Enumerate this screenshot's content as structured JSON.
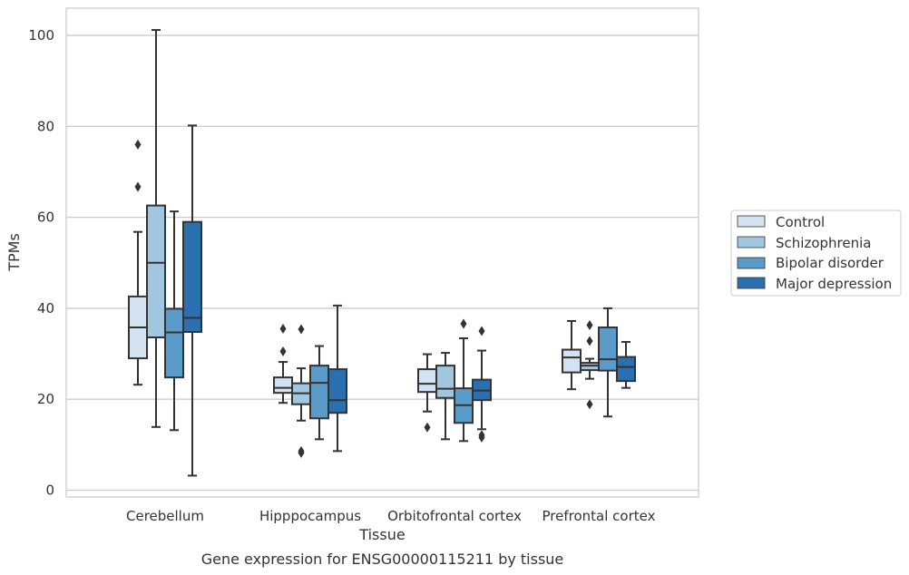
{
  "chart_data": {
    "type": "box",
    "title": "",
    "caption": "Gene expression for ENSG00000115211 by tissue",
    "xlabel": "Tissue",
    "ylabel": "TPMs",
    "ylim": [
      -1.5,
      106
    ],
    "yticks": [
      0,
      20,
      40,
      60,
      80,
      100
    ],
    "grid": "horizontal",
    "legend_position": "right",
    "categories": [
      "Cerebellum",
      "Hipppocampus",
      "Orbitofrontal cortex",
      "Prefrontal cortex"
    ],
    "series": [
      {
        "name": "Control",
        "color": "#d3e3f2",
        "boxes": [
          {
            "whisker_low": 23.2,
            "q1": 29.0,
            "median": 35.8,
            "q3": 42.6,
            "whisker_high": 56.8,
            "outliers": [
              66.7,
              76.0
            ]
          },
          {
            "whisker_low": 19.2,
            "q1": 21.4,
            "median": 22.5,
            "q3": 24.8,
            "whisker_high": 28.2,
            "outliers": [
              30.5,
              35.5
            ]
          },
          {
            "whisker_low": 17.3,
            "q1": 21.6,
            "median": 23.4,
            "q3": 26.6,
            "whisker_high": 29.9,
            "outliers": [
              13.8
            ]
          },
          {
            "whisker_low": 22.2,
            "q1": 25.9,
            "median": 29.2,
            "q3": 30.9,
            "whisker_high": 37.2,
            "outliers": []
          }
        ]
      },
      {
        "name": "Schizophrenia",
        "color": "#a0c6e0",
        "boxes": [
          {
            "whisker_low": 13.9,
            "q1": 33.6,
            "median": 50.0,
            "q3": 62.6,
            "whisker_high": 101.2,
            "outliers": []
          },
          {
            "whisker_low": 15.3,
            "q1": 18.9,
            "median": 21.3,
            "q3": 23.5,
            "whisker_high": 26.8,
            "outliers": [
              8.2,
              8.6,
              35.4
            ]
          },
          {
            "whisker_low": 11.2,
            "q1": 20.3,
            "median": 22.3,
            "q3": 27.4,
            "whisker_high": 30.2,
            "outliers": []
          },
          {
            "whisker_low": 24.5,
            "q1": 26.4,
            "median": 27.4,
            "q3": 28.0,
            "whisker_high": 28.9,
            "outliers": [
              18.9,
              32.8,
              36.3
            ]
          }
        ]
      },
      {
        "name": "Bipolar disorder",
        "color": "#5a9bc9",
        "boxes": [
          {
            "whisker_low": 13.2,
            "q1": 24.8,
            "median": 34.7,
            "q3": 39.9,
            "whisker_high": 61.3,
            "outliers": []
          },
          {
            "whisker_low": 11.2,
            "q1": 15.8,
            "median": 23.6,
            "q3": 27.4,
            "whisker_high": 31.7,
            "outliers": []
          },
          {
            "whisker_low": 10.8,
            "q1": 14.8,
            "median": 18.7,
            "q3": 22.4,
            "whisker_high": 33.4,
            "outliers": [
              36.6
            ]
          },
          {
            "whisker_low": 16.2,
            "q1": 26.3,
            "median": 28.8,
            "q3": 35.8,
            "whisker_high": 40.0,
            "outliers": []
          }
        ]
      },
      {
        "name": "Major depression",
        "color": "#2a6faf",
        "boxes": [
          {
            "whisker_low": 3.2,
            "q1": 34.8,
            "median": 37.9,
            "q3": 59.0,
            "whisker_high": 80.2,
            "outliers": []
          },
          {
            "whisker_low": 8.6,
            "q1": 17.0,
            "median": 19.8,
            "q3": 26.6,
            "whisker_high": 40.6,
            "outliers": []
          },
          {
            "whisker_low": 13.4,
            "q1": 19.8,
            "median": 21.9,
            "q3": 24.3,
            "whisker_high": 30.7,
            "outliers": [
              11.6,
              12.1,
              35.0
            ]
          },
          {
            "whisker_low": 22.5,
            "q1": 24.0,
            "median": 27.1,
            "q3": 29.3,
            "whisker_high": 32.6,
            "outliers": []
          }
        ]
      }
    ]
  }
}
